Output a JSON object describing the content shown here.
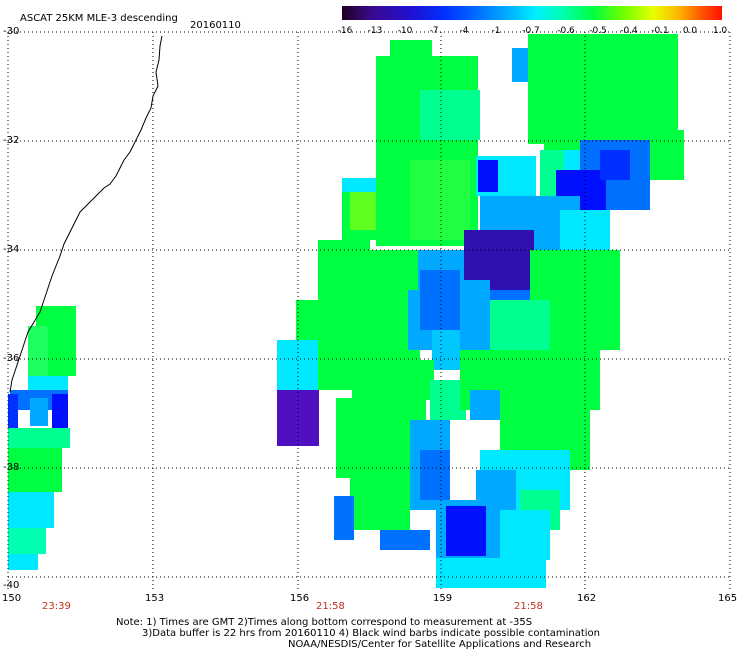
{
  "title": "ASCAT 25KM MLE-3 descending",
  "date": "20160110",
  "colorbar": {
    "labels": [
      "-16",
      "-13",
      "-10",
      "-7",
      "-4",
      "-1",
      "-0.7",
      "-0.6",
      "-0.5",
      "-0.4",
      "-0.1",
      "0.0",
      "1.0"
    ],
    "colors": [
      "#2a0030",
      "#3a0a90",
      "#2010d0",
      "#0030ff",
      "#0070ff",
      "#00a8ff",
      "#00e8ff",
      "#00ffb0",
      "#00ff40",
      "#70ff00",
      "#e0ff00",
      "#ffb000",
      "#ff5000",
      "#ff1000"
    ]
  },
  "lat_labels": [
    "-30",
    "-32",
    "-34",
    "-36",
    "-38",
    "-40"
  ],
  "lon_labels": [
    "150",
    "153",
    "156",
    "159",
    "162",
    "165"
  ],
  "pass_times": [
    "23:39",
    "21:58",
    "21:58"
  ],
  "notes": [
    "Note: 1) Times are GMT 2)Times along bottom correspond to measurement at -35S",
    "3)Data buffer is 22 hrs from 20160110 4) Black wind barbs indicate possible contamination",
    "NOAA/NESDIS/Center for Satellite Applications and Research"
  ],
  "swath_colors": {
    "green": "#00ff40",
    "light_green": "#30ff30",
    "mint": "#00ff90",
    "cyan": "#00e8ff",
    "light_blue": "#00a8ff",
    "blue": "#0070ff",
    "deep_blue": "#0010ff",
    "purple": "#5010c0"
  }
}
